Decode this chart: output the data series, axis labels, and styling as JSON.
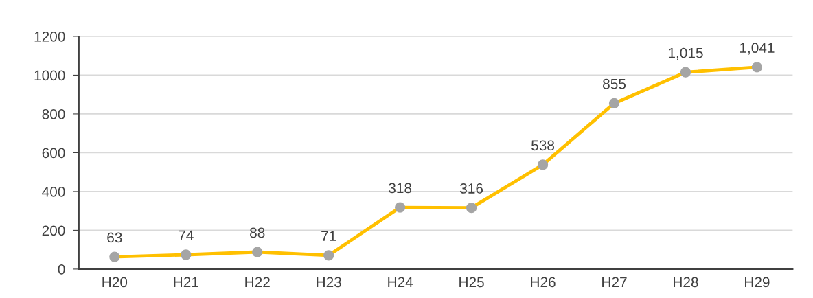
{
  "chart_data": {
    "type": "line",
    "categories": [
      "H20",
      "H21",
      "H22",
      "H23",
      "H24",
      "H25",
      "H26",
      "H27",
      "H28",
      "H29"
    ],
    "series": [
      {
        "color": "#ffc000",
        "values": [
          63,
          74,
          88,
          71,
          318,
          316,
          538,
          855,
          1015,
          1041
        ],
        "value_labels": [
          "63",
          "74",
          "88",
          "71",
          "318",
          "316",
          "538",
          "855",
          "1,015",
          "1,041"
        ]
      }
    ],
    "ylim": [
      0,
      1200
    ],
    "yticks": [
      0,
      200,
      400,
      600,
      800,
      1000,
      1200
    ],
    "grid": "y",
    "marker": "circle",
    "line_style": "solid",
    "legend": false
  }
}
